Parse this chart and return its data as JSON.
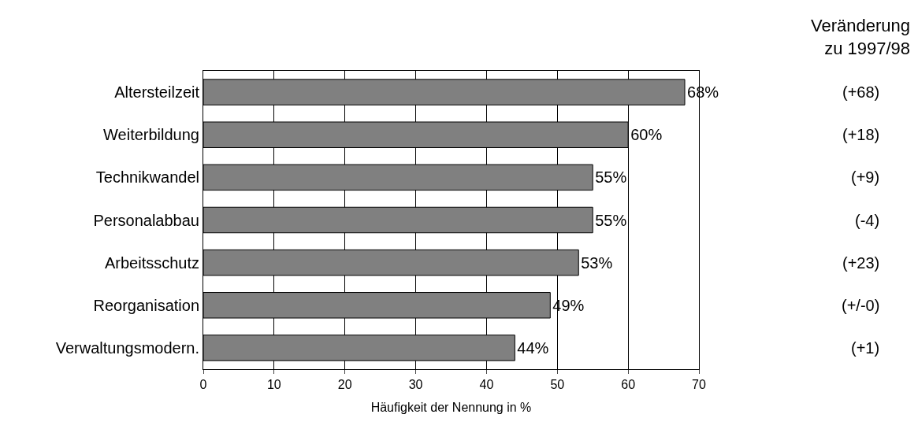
{
  "chart_data": {
    "type": "bar",
    "orientation": "horizontal",
    "categories": [
      "Altersteilzeit",
      "Weiterbildung",
      "Technikwandel",
      "Personalabbau",
      "Arbeitsschutz",
      "Reorganisation",
      "Verwaltungsmodern."
    ],
    "values": [
      68,
      60,
      55,
      55,
      53,
      49,
      44
    ],
    "value_labels": [
      "68%",
      "60%",
      "55%",
      "55%",
      "53%",
      "49%",
      "44%"
    ],
    "color": "#808080",
    "xlabel": "Häufigkeit der Nennung in %",
    "xlim": [
      0,
      70
    ],
    "xticks": [
      0,
      10,
      20,
      30,
      40,
      50,
      60,
      70
    ],
    "grid": "x",
    "legend": false,
    "annotations": [
      "Veränderung zu 1997/98",
      "(+68)",
      "(+18)",
      "(+9)",
      "(-4)",
      "(+23)",
      "(+/-0)",
      "(+1)"
    ]
  }
}
